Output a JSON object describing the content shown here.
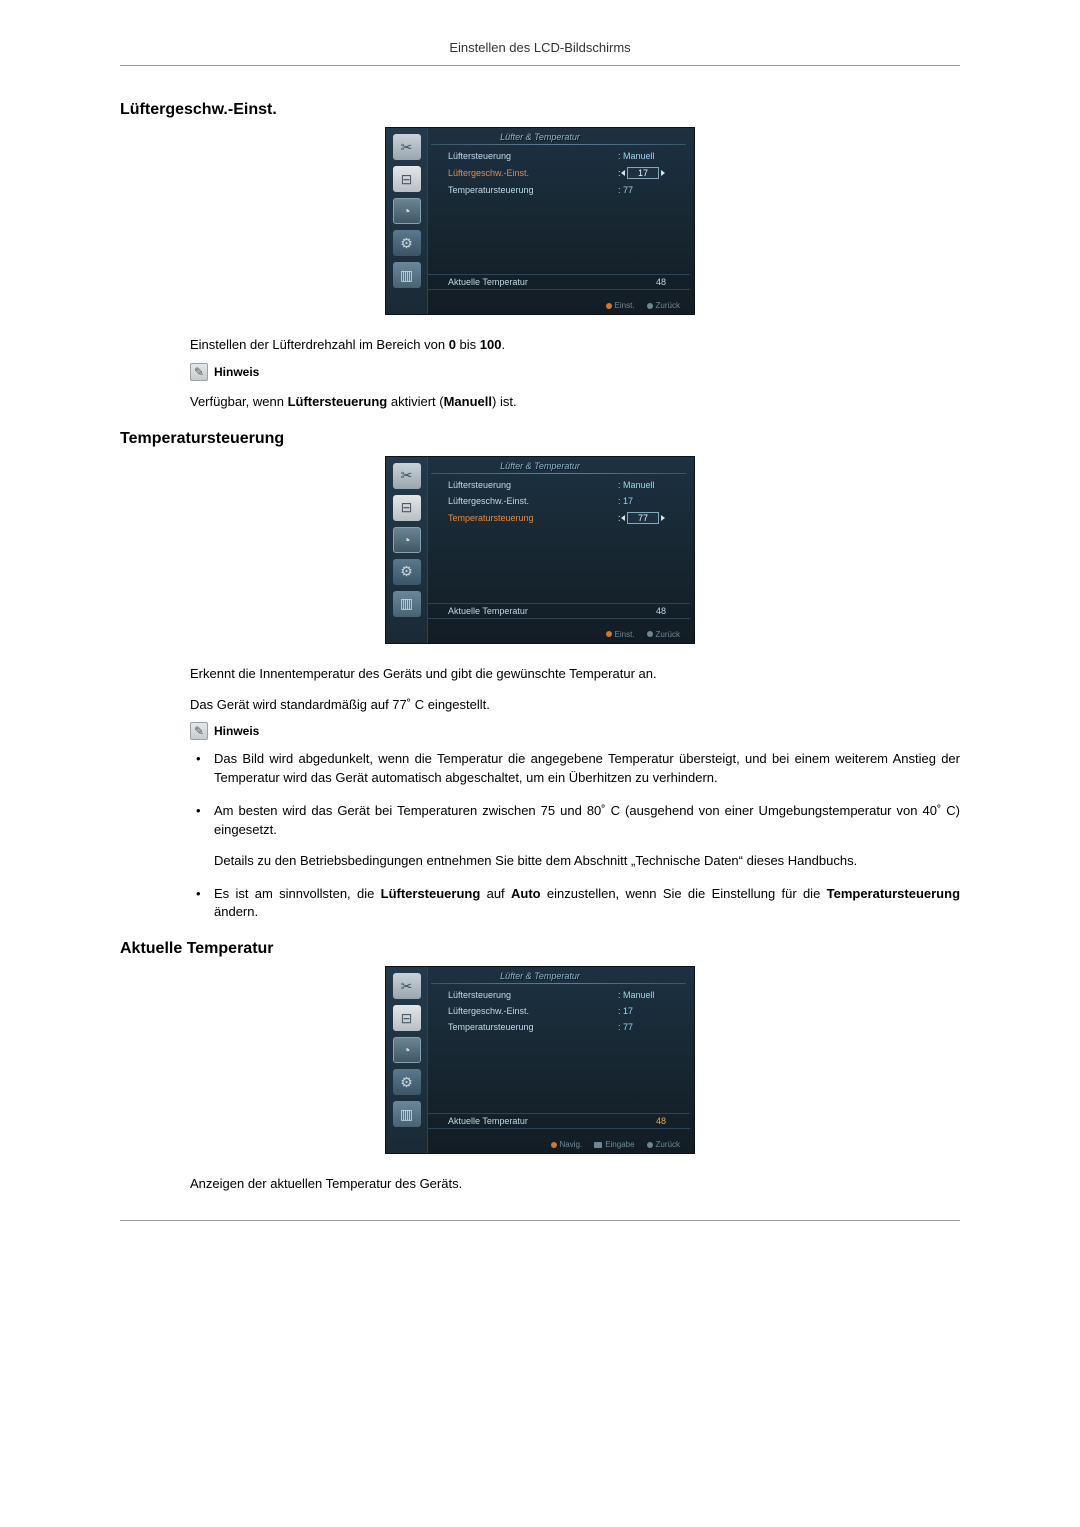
{
  "page": {
    "header": "Einstellen des LCD-Bildschirms"
  },
  "sections": {
    "s1": {
      "title": "Lüftergeschw.-Einst."
    },
    "s2": {
      "title": "Temperatursteuerung"
    },
    "s3": {
      "title": "Aktuelle Temperatur"
    }
  },
  "osd_common": {
    "title": "Lüfter & Temperatur",
    "rows": {
      "fan_control": "Lüftersteuerung",
      "fan_speed": "Lüftergeschw.-Einst.",
      "temp_control": "Temperatursteuerung",
      "current_temp": "Aktuelle Temperatur"
    },
    "footer": {
      "navig": "Navig.",
      "einst": "Einst.",
      "eingabe": "Eingabe",
      "zurueck": "Zurück"
    },
    "colors": {
      "bg_top": "#1d3142",
      "bg_bottom": "#121c24",
      "label": "#bfd9e8",
      "value": "#9cd4f0",
      "highlight": "#e88a3a"
    }
  },
  "osd1": {
    "fan_control_val": ": Manuell",
    "fan_speed_val": "17",
    "temp_control_val": ": 77",
    "current_temp_val": "48",
    "highlight": "fan_speed"
  },
  "osd2": {
    "fan_control_val": ": Manuell",
    "fan_speed_val": ": 17",
    "temp_control_val": "77",
    "current_temp_val": "48",
    "highlight": "temp_control"
  },
  "osd3": {
    "fan_control_val": ": Manuell",
    "fan_speed_val": ": 17",
    "temp_control_val": ": 77",
    "current_temp_val": "48",
    "highlight": "none"
  },
  "text": {
    "s1_body_pre": "Einstellen der Lüfterdrehzahl im Bereich von ",
    "s1_body_b1": "0",
    "s1_body_mid": " bis ",
    "s1_body_b2": "100",
    "s1_body_post": ".",
    "hinweis": "Hinweis",
    "s1_note_pre": "Verfügbar, wenn ",
    "s1_note_b1": "Lüftersteuerung",
    "s1_note_mid": " aktiviert (",
    "s1_note_b2": "Manuell",
    "s1_note_post": ") ist.",
    "s2_p1": "Erkennt die Innentemperatur des Geräts und gibt die gewünschte Temperatur an.",
    "s2_p2": "Das Gerät wird standardmäßig auf 77˚ C eingestellt.",
    "s2_li1": "Das Bild wird abgedunkelt, wenn die Temperatur die angegebene Temperatur übersteigt, und bei einem weiterem Anstieg der Temperatur wird das Gerät automatisch abgeschaltet, um ein Überhitzen zu verhindern.",
    "s2_li2": "Am besten wird das Gerät bei Temperaturen zwischen 75 und 80˚ C (ausgehend von einer Umgebungstemperatur von 40˚ C) eingesetzt.",
    "s2_li2b": "Details zu den Betriebsbedingungen entnehmen Sie bitte dem Abschnitt „Technische Daten“ dieses Handbuchs.",
    "s2_li3_pre": "Es ist am sinnvollsten, die ",
    "s2_li3_b1": "Lüftersteuerung",
    "s2_li3_mid": " auf ",
    "s2_li3_b2": "Auto",
    "s2_li3_mid2": " einzustellen, wenn Sie die Einstellung für die ",
    "s2_li3_b3": "Temperatursteuerung",
    "s2_li3_post": " ändern.",
    "s3_p1": "Anzeigen der aktuellen Temperatur des Geräts."
  }
}
